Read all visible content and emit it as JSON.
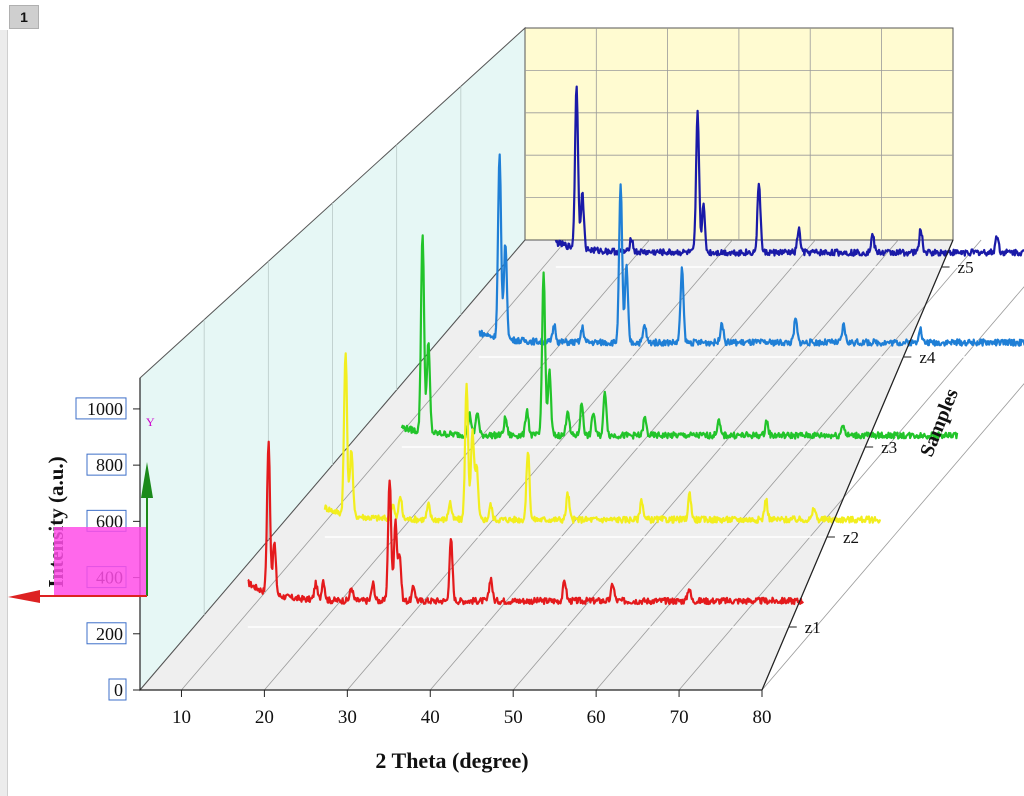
{
  "window": {
    "tab_label": "1"
  },
  "chart_data": {
    "type": "line",
    "title": "",
    "xlabel": "2 Theta (degree)",
    "ylabel": "Intensity  (a.u.)",
    "zlabel": "Samples",
    "xlim": [
      5,
      80
    ],
    "ylim": [
      0,
      1100
    ],
    "xticks": [
      "10",
      "20",
      "30",
      "40",
      "50",
      "60",
      "70",
      "80"
    ],
    "yticks": [
      "0",
      "200",
      "400",
      "600",
      "800",
      "1000"
    ],
    "y_gizmo_label": "Y",
    "series": [
      {
        "name": "z1",
        "color": "#e41a1c",
        "baseline": 90,
        "peaks": [
          [
            14.0,
            520
          ],
          [
            14.7,
            180
          ],
          [
            19.7,
            55
          ],
          [
            20.6,
            70
          ],
          [
            24.0,
            45
          ],
          [
            26.6,
            60
          ],
          [
            28.6,
            420
          ],
          [
            29.3,
            270
          ],
          [
            29.8,
            160
          ],
          [
            31.5,
            50
          ],
          [
            36.0,
            210
          ],
          [
            40.8,
            80
          ],
          [
            49.7,
            70
          ],
          [
            55.5,
            60
          ],
          [
            64.7,
            45
          ]
        ]
      },
      {
        "name": "z2",
        "color": "#f2ee1e",
        "baseline": 60,
        "peaks": [
          [
            14.0,
            560
          ],
          [
            14.7,
            230
          ],
          [
            19.7,
            50
          ],
          [
            20.6,
            80
          ],
          [
            24.0,
            50
          ],
          [
            26.6,
            60
          ],
          [
            28.6,
            470
          ],
          [
            29.3,
            300
          ],
          [
            29.8,
            180
          ],
          [
            31.5,
            50
          ],
          [
            36.0,
            240
          ],
          [
            40.8,
            90
          ],
          [
            49.7,
            70
          ],
          [
            55.5,
            90
          ],
          [
            64.7,
            70
          ],
          [
            70.5,
            40
          ]
        ]
      },
      {
        "name": "z3",
        "color": "#22c42a",
        "baseline": 40,
        "peaks": [
          [
            14.0,
            690
          ],
          [
            14.7,
            310
          ],
          [
            19.7,
            70
          ],
          [
            20.6,
            80
          ],
          [
            24.0,
            60
          ],
          [
            26.6,
            90
          ],
          [
            28.6,
            560
          ],
          [
            29.3,
            220
          ],
          [
            31.5,
            90
          ],
          [
            33.2,
            110
          ],
          [
            34.6,
            80
          ],
          [
            36.0,
            150
          ],
          [
            40.8,
            60
          ],
          [
            49.7,
            50
          ],
          [
            55.5,
            50
          ],
          [
            64.7,
            40
          ]
        ]
      },
      {
        "name": "z4",
        "color": "#1f7fd6",
        "baseline": 50,
        "peaks": [
          [
            14.0,
            630
          ],
          [
            14.7,
            330
          ],
          [
            20.6,
            60
          ],
          [
            24.0,
            50
          ],
          [
            28.6,
            540
          ],
          [
            29.3,
            260
          ],
          [
            31.5,
            60
          ],
          [
            36.0,
            250
          ],
          [
            40.8,
            70
          ],
          [
            49.7,
            80
          ],
          [
            55.5,
            60
          ],
          [
            64.7,
            50
          ]
        ]
      },
      {
        "name": "z5",
        "color": "#1a1aa8",
        "baseline": 50,
        "peaks": [
          [
            14.0,
            560
          ],
          [
            14.7,
            190
          ],
          [
            20.6,
            50
          ],
          [
            28.6,
            480
          ],
          [
            29.3,
            160
          ],
          [
            36.0,
            240
          ],
          [
            40.8,
            80
          ],
          [
            49.7,
            60
          ],
          [
            55.5,
            80
          ],
          [
            64.7,
            60
          ],
          [
            71.0,
            50
          ]
        ]
      }
    ]
  }
}
